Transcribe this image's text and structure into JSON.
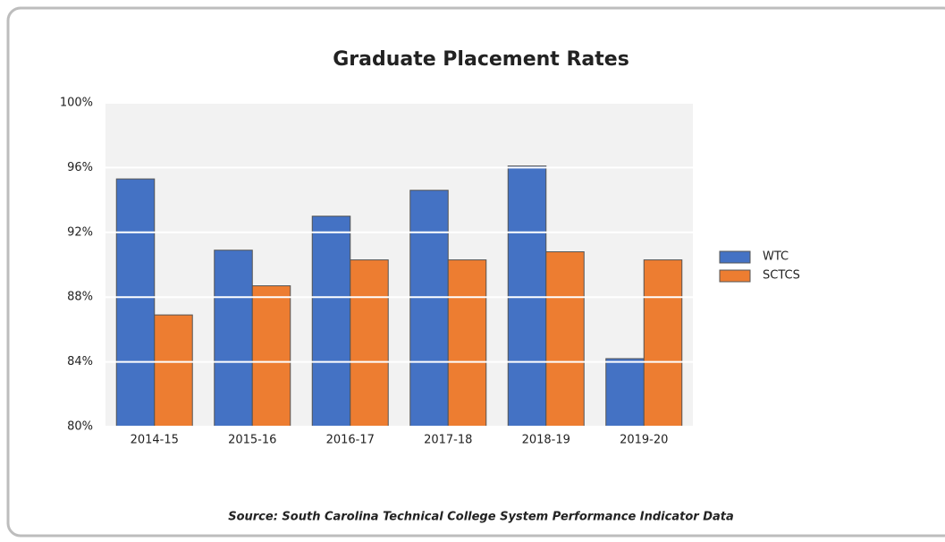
{
  "chart_data": {
    "type": "bar",
    "title": "Graduate Placement Rates",
    "source": "Source: South Carolina Technical College System Performance Indicator Data",
    "categories": [
      "2014-15",
      "2015-16",
      "2016-17",
      "2017-18",
      "2018-19",
      "2019-20"
    ],
    "series": [
      {
        "name": "WTC",
        "color": "#4472c4",
        "values": [
          95.3,
          90.9,
          93.0,
          94.6,
          96.1,
          84.2
        ]
      },
      {
        "name": "SCTCS",
        "color": "#ed7d31",
        "values": [
          86.9,
          88.7,
          90.3,
          90.3,
          90.8,
          90.3
        ]
      }
    ],
    "ylim": [
      80,
      100
    ],
    "yticks": [
      {
        "value": 80,
        "label": "80%"
      },
      {
        "value": 84,
        "label": "84%"
      },
      {
        "value": 88,
        "label": "88%"
      },
      {
        "value": 92,
        "label": "92%"
      },
      {
        "value": 96,
        "label": "96%"
      },
      {
        "value": 100,
        "label": "100%"
      }
    ],
    "grid": true,
    "legend": "right"
  }
}
